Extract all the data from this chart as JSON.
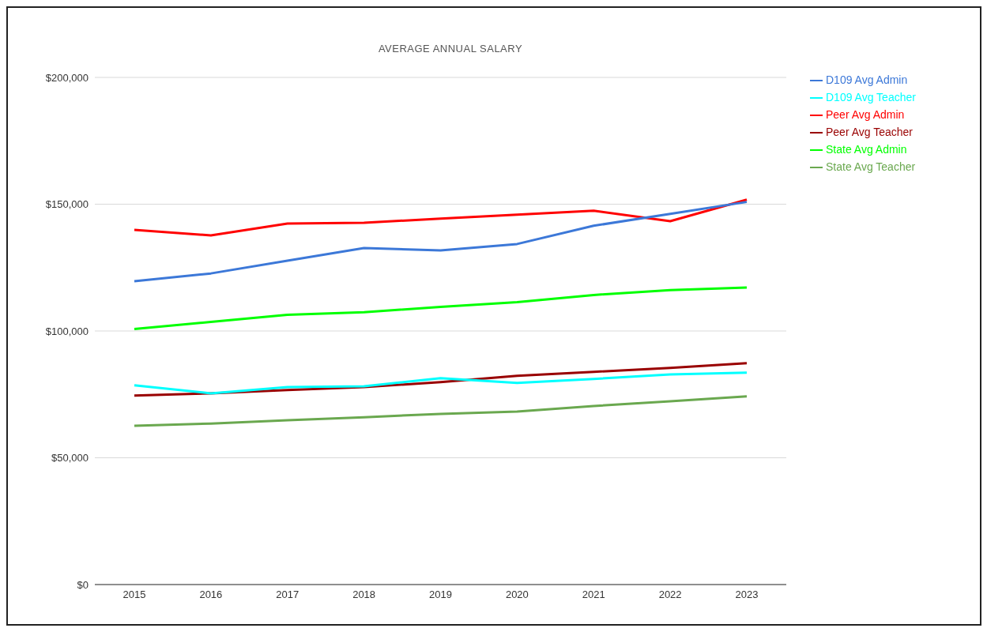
{
  "chart_data": {
    "type": "line",
    "title": "AVERAGE ANNUAL SALARY",
    "categories": [
      "2015",
      "2016",
      "2017",
      "2018",
      "2019",
      "2020",
      "2021",
      "2022",
      "2023"
    ],
    "series": [
      {
        "name": "State Avg Admin",
        "color": "#00ff00",
        "values": [
          100800,
          103600,
          106400,
          107400,
          109500,
          111400,
          114200,
          116100,
          117100
        ]
      },
      {
        "name": "State Avg Teacher",
        "color": "#6aa84f",
        "values": [
          62600,
          63500,
          64800,
          66000,
          67300,
          68200,
          70400,
          72300,
          74200
        ]
      },
      {
        "name": "Peer Avg Teacher",
        "color": "#990000",
        "values": [
          74500,
          75400,
          76700,
          77900,
          79800,
          82300,
          83900,
          85400,
          87300
        ]
      },
      {
        "name": "Peer Avg Admin",
        "color": "#ff0000",
        "values": [
          139900,
          137700,
          142400,
          142700,
          144300,
          145900,
          147400,
          143300,
          151800
        ]
      },
      {
        "name": "D109 Avg Teacher",
        "color": "#00ffff",
        "values": [
          78600,
          75400,
          77900,
          78200,
          81400,
          79500,
          81100,
          82900,
          83600
        ]
      },
      {
        "name": "D109 Avg Admin",
        "color": "#3c78d8",
        "values": [
          119600,
          122700,
          127700,
          132700,
          131800,
          134300,
          141500,
          146200,
          150900
        ]
      }
    ],
    "ylim": [
      0,
      200000
    ],
    "yticks": [
      {
        "value": 0,
        "label": "$0"
      },
      {
        "value": 50000,
        "label": "$50,000"
      },
      {
        "value": 100000,
        "label": "$100,000"
      },
      {
        "value": 150000,
        "label": "$150,000"
      },
      {
        "value": 200000,
        "label": "$200,000"
      }
    ],
    "grid": "y",
    "legend": "right",
    "marker": "none",
    "line_style": "solid"
  }
}
